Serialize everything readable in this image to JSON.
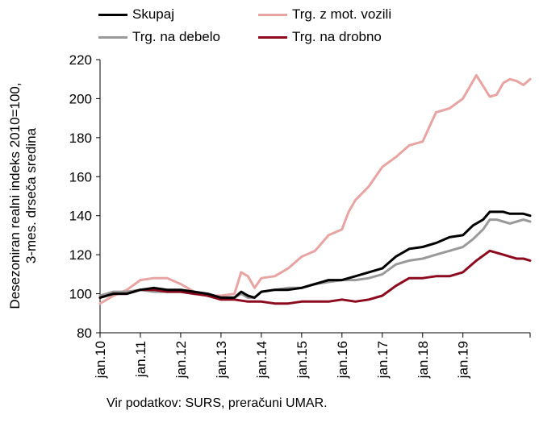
{
  "chart_data": {
    "type": "line",
    "ylabel": "Desezoniran realni indeks 2010=100,\n3-mes. drseča sredina",
    "ylim": [
      80,
      220
    ],
    "yticks": [
      80,
      100,
      120,
      140,
      160,
      180,
      200,
      220
    ],
    "xticks": [
      "jan.10",
      "jan.11",
      "jan.12",
      "jan.13",
      "jan.14",
      "jan.15",
      "jan.16",
      "jan.17",
      "jan.18",
      "jan.19"
    ],
    "x_start_index": 0,
    "x_end_index": 119,
    "legend_position": "top",
    "grid": false,
    "source": "Vir podatkov: SURS, preračuni UMAR.",
    "series": [
      {
        "name": "Skupaj",
        "color": "#000000",
        "points": [
          [
            0,
            98
          ],
          [
            4,
            100
          ],
          [
            8,
            100
          ],
          [
            12,
            102
          ],
          [
            16,
            103
          ],
          [
            20,
            102
          ],
          [
            24,
            102
          ],
          [
            28,
            101
          ],
          [
            32,
            100
          ],
          [
            36,
            98
          ],
          [
            40,
            98
          ],
          [
            42,
            101
          ],
          [
            44,
            99
          ],
          [
            46,
            98
          ],
          [
            48,
            101
          ],
          [
            52,
            102
          ],
          [
            56,
            102
          ],
          [
            60,
            103
          ],
          [
            64,
            105
          ],
          [
            68,
            107
          ],
          [
            72,
            107
          ],
          [
            76,
            109
          ],
          [
            80,
            111
          ],
          [
            84,
            113
          ],
          [
            88,
            119
          ],
          [
            92,
            123
          ],
          [
            96,
            124
          ],
          [
            100,
            126
          ],
          [
            104,
            129
          ],
          [
            108,
            130
          ],
          [
            111,
            135
          ],
          [
            114,
            138
          ],
          [
            116,
            142
          ],
          [
            118,
            142
          ],
          [
            120,
            142
          ],
          [
            122,
            141
          ],
          [
            124,
            141
          ],
          [
            126,
            141
          ],
          [
            128,
            140
          ]
        ]
      },
      {
        "name": "Trg. z mot. vozili",
        "color": "#e8a3a3",
        "points": [
          [
            0,
            95
          ],
          [
            4,
            99
          ],
          [
            8,
            102
          ],
          [
            12,
            107
          ],
          [
            16,
            108
          ],
          [
            20,
            108
          ],
          [
            24,
            105
          ],
          [
            28,
            101
          ],
          [
            32,
            99
          ],
          [
            36,
            99
          ],
          [
            40,
            100
          ],
          [
            42,
            111
          ],
          [
            44,
            109
          ],
          [
            46,
            103
          ],
          [
            48,
            108
          ],
          [
            52,
            109
          ],
          [
            56,
            113
          ],
          [
            60,
            119
          ],
          [
            64,
            122
          ],
          [
            68,
            130
          ],
          [
            72,
            133
          ],
          [
            74,
            142
          ],
          [
            76,
            148
          ],
          [
            80,
            155
          ],
          [
            84,
            165
          ],
          [
            88,
            170
          ],
          [
            92,
            176
          ],
          [
            96,
            178
          ],
          [
            100,
            193
          ],
          [
            104,
            195
          ],
          [
            108,
            200
          ],
          [
            112,
            212
          ],
          [
            116,
            201
          ],
          [
            118,
            202
          ],
          [
            120,
            208
          ],
          [
            122,
            210
          ],
          [
            124,
            209
          ],
          [
            126,
            207
          ],
          [
            128,
            210
          ]
        ]
      },
      {
        "name": "Trg. na debelo",
        "color": "#999999",
        "points": [
          [
            0,
            99
          ],
          [
            4,
            101
          ],
          [
            8,
            101
          ],
          [
            12,
            102
          ],
          [
            16,
            101
          ],
          [
            20,
            101
          ],
          [
            24,
            101
          ],
          [
            28,
            100
          ],
          [
            32,
            100
          ],
          [
            36,
            98
          ],
          [
            40,
            98
          ],
          [
            42,
            100
          ],
          [
            44,
            98
          ],
          [
            46,
            98
          ],
          [
            48,
            101
          ],
          [
            52,
            102
          ],
          [
            56,
            103
          ],
          [
            60,
            103
          ],
          [
            64,
            105
          ],
          [
            68,
            106
          ],
          [
            72,
            107
          ],
          [
            76,
            107
          ],
          [
            80,
            108
          ],
          [
            84,
            110
          ],
          [
            88,
            115
          ],
          [
            92,
            117
          ],
          [
            96,
            118
          ],
          [
            100,
            120
          ],
          [
            104,
            122
          ],
          [
            108,
            124
          ],
          [
            111,
            128
          ],
          [
            114,
            133
          ],
          [
            116,
            138
          ],
          [
            118,
            138
          ],
          [
            120,
            137
          ],
          [
            122,
            136
          ],
          [
            124,
            137
          ],
          [
            126,
            138
          ],
          [
            128,
            137
          ]
        ]
      },
      {
        "name": "Trg. na drobno",
        "color": "#8b0a1e",
        "points": [
          [
            0,
            98
          ],
          [
            4,
            100
          ],
          [
            8,
            100
          ],
          [
            12,
            102
          ],
          [
            16,
            102
          ],
          [
            20,
            101
          ],
          [
            24,
            101
          ],
          [
            28,
            100
          ],
          [
            32,
            99
          ],
          [
            36,
            97
          ],
          [
            40,
            97
          ],
          [
            44,
            96
          ],
          [
            48,
            96
          ],
          [
            52,
            95
          ],
          [
            56,
            95
          ],
          [
            60,
            96
          ],
          [
            64,
            96
          ],
          [
            68,
            96
          ],
          [
            72,
            97
          ],
          [
            76,
            96
          ],
          [
            80,
            97
          ],
          [
            84,
            99
          ],
          [
            88,
            104
          ],
          [
            92,
            108
          ],
          [
            96,
            108
          ],
          [
            100,
            109
          ],
          [
            104,
            109
          ],
          [
            108,
            111
          ],
          [
            112,
            117
          ],
          [
            116,
            122
          ],
          [
            118,
            121
          ],
          [
            120,
            120
          ],
          [
            122,
            119
          ],
          [
            124,
            118
          ],
          [
            126,
            118
          ],
          [
            128,
            117
          ]
        ]
      }
    ]
  }
}
